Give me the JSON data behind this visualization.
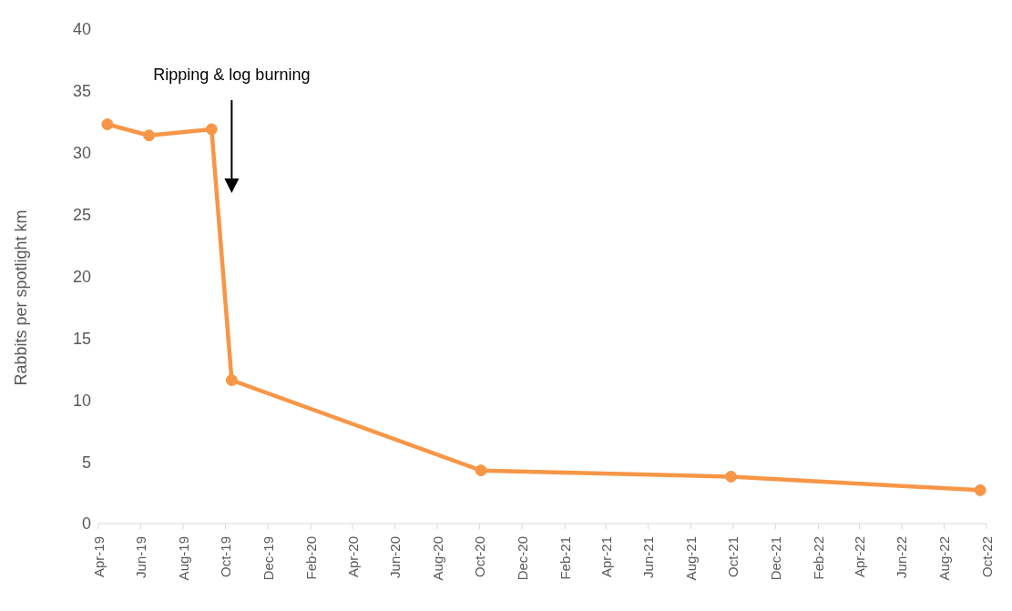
{
  "chart_data": {
    "type": "line",
    "ylabel": "Rabbits per spotlight km",
    "x": [
      "2019-04-14",
      "2019-06-13",
      "2019-09-11",
      "2019-10-10",
      "2020-10-03",
      "2021-09-28",
      "2022-09-22"
    ],
    "series": [
      {
        "color": "#f79646",
        "values": [
          32.3,
          31.4,
          31.9,
          11.6,
          4.3,
          3.8,
          2.7
        ]
      }
    ],
    "xlim": [
      "2019-04-01",
      "2022-10-01"
    ],
    "xticks": [
      {
        "value": "2019-04-01",
        "label": "Apr-19"
      },
      {
        "value": "2019-06-01",
        "label": "Jun-19"
      },
      {
        "value": "2019-08-01",
        "label": "Aug-19"
      },
      {
        "value": "2019-10-01",
        "label": "Oct-19"
      },
      {
        "value": "2019-12-01",
        "label": "Dec-19"
      },
      {
        "value": "2020-02-01",
        "label": "Feb-20"
      },
      {
        "value": "2020-04-01",
        "label": "Apr-20"
      },
      {
        "value": "2020-06-01",
        "label": "Jun-20"
      },
      {
        "value": "2020-08-01",
        "label": "Aug-20"
      },
      {
        "value": "2020-10-01",
        "label": "Oct-20"
      },
      {
        "value": "2020-12-01",
        "label": "Dec-20"
      },
      {
        "value": "2021-02-01",
        "label": "Feb-21"
      },
      {
        "value": "2021-04-01",
        "label": "Apr-21"
      },
      {
        "value": "2021-06-01",
        "label": "Jun-21"
      },
      {
        "value": "2021-08-01",
        "label": "Aug-21"
      },
      {
        "value": "2021-10-01",
        "label": "Oct-21"
      },
      {
        "value": "2021-12-01",
        "label": "Dec-21"
      },
      {
        "value": "2022-02-01",
        "label": "Feb-22"
      },
      {
        "value": "2022-04-01",
        "label": "Apr-22"
      },
      {
        "value": "2022-06-01",
        "label": "Jun-22"
      },
      {
        "value": "2022-08-01",
        "label": "Aug-22"
      },
      {
        "value": "2022-10-01",
        "label": "Oct-22"
      }
    ],
    "ylim": [
      0,
      40
    ],
    "yticks": [
      0,
      5,
      10,
      15,
      20,
      25,
      30,
      35,
      40
    ],
    "annotations": [
      "Ripping & log burning"
    ],
    "grid": false,
    "legend": false,
    "marker": "circle",
    "line_style": "solid"
  }
}
